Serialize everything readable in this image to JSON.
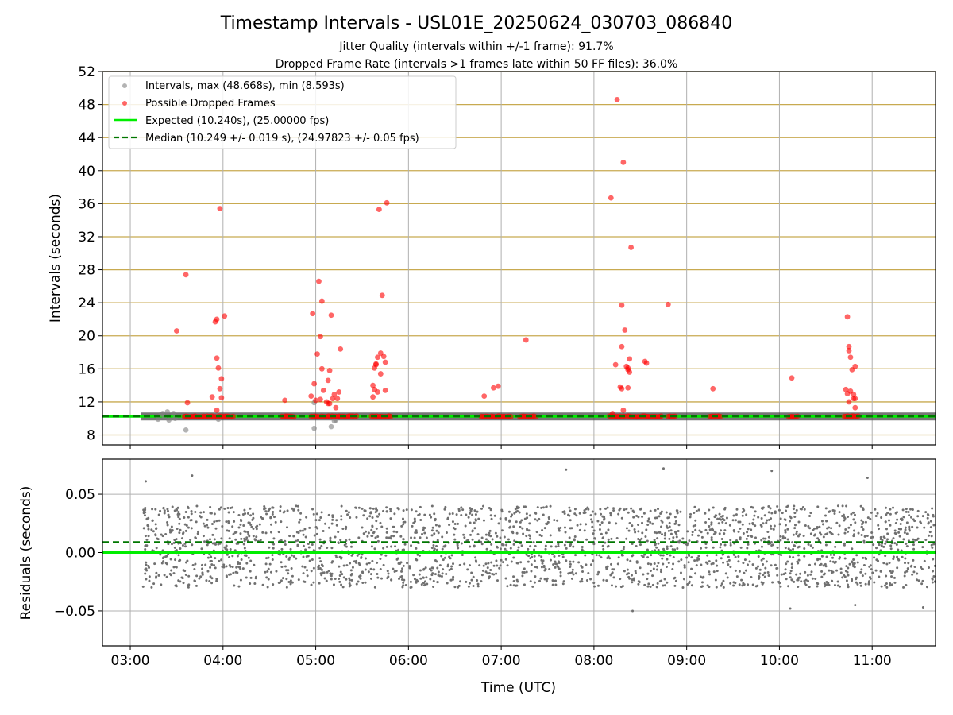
{
  "figure": {
    "title": "Timestamp Intervals - USL01E_20250624_030703_086840",
    "subtitle_1": "Jitter Quality (intervals within +/-1 frame): 91.7%",
    "subtitle_2": "Dropped Frame Rate (intervals >1 frames late within 50 FF files): 36.0%",
    "xlabel": "Time (UTC)"
  },
  "colors": {
    "grey_points": "#808080",
    "red_points": "#ff0000",
    "expected_line": "#00ee00",
    "median_line": "#007700",
    "h_grid": "#c8aa50",
    "v_grid": "#b0b0b0"
  },
  "chart_data": [
    {
      "type": "scatter",
      "panel": "intervals",
      "ylabel": "Intervals (seconds)",
      "xlim": [
        "02:42",
        "11:41"
      ],
      "ylim": [
        6.8,
        52
      ],
      "yticks": [
        8,
        12,
        16,
        20,
        24,
        28,
        32,
        36,
        40,
        44,
        48,
        52
      ],
      "ytick_labels": [
        "8",
        "12",
        "16",
        "20",
        "24",
        "28",
        "32",
        "36",
        "40",
        "44",
        "48",
        "52"
      ],
      "xticks": [
        "03:00",
        "04:00",
        "05:00",
        "06:00",
        "07:00",
        "08:00",
        "09:00",
        "10:00",
        "11:00"
      ],
      "grid": "horizontal lines at y ticks, vertical lines at hours",
      "legend_position": "top-left",
      "legend": [
        "Intervals, max (48.668s), min (8.593s)",
        "Possible Dropped Frames",
        "Expected (10.240s), (25.00000 fps)",
        "Median (10.249 +/- 0.019 s), (24.97823 +/- 0.05 fps)"
      ],
      "expected_interval": 10.24,
      "median_interval": 10.249,
      "series": [
        {
          "name": "Intervals, max (48.668s), min (8.593s)",
          "points": [
            [
              "03:18",
              9.9
            ],
            [
              "03:20",
              10.5
            ],
            [
              "03:21",
              10.6
            ],
            [
              "03:22",
              10.2
            ],
            [
              "03:24",
              10.8
            ],
            [
              "03:25",
              9.8
            ],
            [
              "03:28",
              10.6
            ],
            [
              "03:29",
              10.0
            ],
            [
              "03:36",
              8.6
            ],
            [
              "03:57",
              9.9
            ],
            [
              "04:59",
              8.8
            ],
            [
              "04:59",
              11.9
            ],
            [
              "05:10",
              9.0
            ],
            [
              "05:12",
              9.7
            ],
            [
              "05:13",
              9.8
            ]
          ]
        },
        {
          "name": "Possible Dropped Frames",
          "points": [
            [
              "03:30",
              20.6
            ],
            [
              "03:36",
              27.4
            ],
            [
              "03:37",
              11.9
            ],
            [
              "03:53",
              12.6
            ],
            [
              "03:55",
              21.7
            ],
            [
              "03:56",
              22.0
            ],
            [
              "03:56",
              17.3
            ],
            [
              "03:56",
              11.0
            ],
            [
              "03:57",
              16.1
            ],
            [
              "03:58",
              35.4
            ],
            [
              "03:58",
              13.6
            ],
            [
              "03:59",
              14.8
            ],
            [
              "03:59",
              12.5
            ],
            [
              "04:01",
              22.4
            ],
            [
              "04:40",
              12.2
            ],
            [
              "04:57",
              12.7
            ],
            [
              "04:58",
              22.7
            ],
            [
              "04:59",
              14.2
            ],
            [
              "05:00",
              12.2
            ],
            [
              "05:01",
              17.8
            ],
            [
              "05:02",
              26.6
            ],
            [
              "05:03",
              19.9
            ],
            [
              "05:03",
              12.3
            ],
            [
              "05:04",
              16.0
            ],
            [
              "05:04",
              24.2
            ],
            [
              "05:05",
              13.4
            ],
            [
              "05:07",
              12.0
            ],
            [
              "05:08",
              11.8
            ],
            [
              "05:08",
              14.6
            ],
            [
              "05:09",
              15.8
            ],
            [
              "05:09",
              11.8
            ],
            [
              "05:10",
              22.5
            ],
            [
              "05:11",
              12.4
            ],
            [
              "05:12",
              12.9
            ],
            [
              "05:13",
              11.3
            ],
            [
              "05:14",
              12.4
            ],
            [
              "05:15",
              13.2
            ],
            [
              "05:16",
              18.4
            ],
            [
              "05:37",
              12.6
            ],
            [
              "05:37",
              14.0
            ],
            [
              "05:38",
              16.1
            ],
            [
              "05:38",
              13.5
            ],
            [
              "05:39",
              16.5
            ],
            [
              "05:39",
              16.6
            ],
            [
              "05:40",
              17.4
            ],
            [
              "05:40",
              13.2
            ],
            [
              "05:41",
              35.3
            ],
            [
              "05:42",
              17.9
            ],
            [
              "05:42",
              15.4
            ],
            [
              "05:43",
              24.9
            ],
            [
              "05:44",
              17.5
            ],
            [
              "05:45",
              13.4
            ],
            [
              "05:45",
              16.8
            ],
            [
              "05:46",
              36.1
            ],
            [
              "06:49",
              12.7
            ],
            [
              "06:55",
              13.7
            ],
            [
              "06:58",
              13.9
            ],
            [
              "07:16",
              19.5
            ],
            [
              "08:11",
              36.7
            ],
            [
              "08:12",
              10.6
            ],
            [
              "08:14",
              16.5
            ],
            [
              "08:15",
              48.6
            ],
            [
              "08:17",
              13.8
            ],
            [
              "08:18",
              23.7
            ],
            [
              "08:18",
              18.7
            ],
            [
              "08:18",
              13.6
            ],
            [
              "08:19",
              41.0
            ],
            [
              "08:19",
              11.0
            ],
            [
              "08:20",
              20.7
            ],
            [
              "08:21",
              16.3
            ],
            [
              "08:22",
              15.9
            ],
            [
              "08:22",
              16.1
            ],
            [
              "08:22",
              13.7
            ],
            [
              "08:23",
              15.6
            ],
            [
              "08:23",
              17.2
            ],
            [
              "08:24",
              30.7
            ],
            [
              "08:33",
              16.9
            ],
            [
              "08:34",
              16.7
            ],
            [
              "08:48",
              23.8
            ],
            [
              "09:17",
              13.6
            ],
            [
              "10:08",
              14.9
            ],
            [
              "10:43",
              13.5
            ],
            [
              "10:44",
              13.0
            ],
            [
              "10:44",
              22.3
            ],
            [
              "10:45",
              18.2
            ],
            [
              "10:45",
              12.0
            ],
            [
              "10:45",
              18.7
            ],
            [
              "10:46",
              13.3
            ],
            [
              "10:46",
              17.4
            ],
            [
              "10:47",
              15.9
            ],
            [
              "10:48",
              12.4
            ],
            [
              "10:48",
              12.9
            ],
            [
              "10:49",
              16.3
            ],
            [
              "10:49",
              11.3
            ],
            [
              "10:49",
              12.4
            ]
          ],
          "dense_runs_at_expected": [
            [
              "03:35",
              "04:07"
            ],
            [
              "04:38",
              "04:47"
            ],
            [
              "04:57",
              "05:27"
            ],
            [
              "05:36",
              "05:49"
            ],
            [
              "06:47",
              "07:07"
            ],
            [
              "07:12",
              "07:23"
            ],
            [
              "08:10",
              "08:21"
            ],
            [
              "08:22",
              "08:44"
            ],
            [
              "08:48",
              "08:53"
            ],
            [
              "09:15",
              "09:22"
            ],
            [
              "10:06",
              "10:12"
            ],
            [
              "10:42",
              "10:52"
            ]
          ]
        }
      ]
    },
    {
      "type": "scatter",
      "panel": "residuals",
      "ylabel": "Residuals (seconds)",
      "xlabel": "Time (UTC)",
      "xlim": [
        "02:42",
        "11:41"
      ],
      "ylim": [
        -0.08,
        0.08
      ],
      "yticks": [
        -0.05,
        0.0,
        0.05
      ],
      "ytick_labels": [
        "−0.05",
        "0.00",
        "0.05"
      ],
      "xticks": [
        "03:00",
        "04:00",
        "05:00",
        "06:00",
        "07:00",
        "08:00",
        "09:00",
        "10:00",
        "11:00"
      ],
      "grid": "on",
      "expected_residual": 0.0,
      "median_residual": 0.009,
      "series": [
        {
          "name": "Residuals",
          "time_range": [
            "03:08",
            "11:41"
          ],
          "approx_count": 2400,
          "typical_range": [
            -0.03,
            0.04
          ],
          "outliers": [
            [
              "03:10",
              0.061
            ],
            [
              "03:40",
              0.066
            ],
            [
              "07:42",
              0.071
            ],
            [
              "08:45",
              0.072
            ],
            [
              "09:55",
              0.07
            ],
            [
              "10:57",
              0.064
            ],
            [
              "08:25",
              -0.05
            ],
            [
              "10:07",
              -0.048
            ],
            [
              "11:33",
              -0.047
            ],
            [
              "10:49",
              -0.045
            ]
          ]
        }
      ]
    }
  ]
}
